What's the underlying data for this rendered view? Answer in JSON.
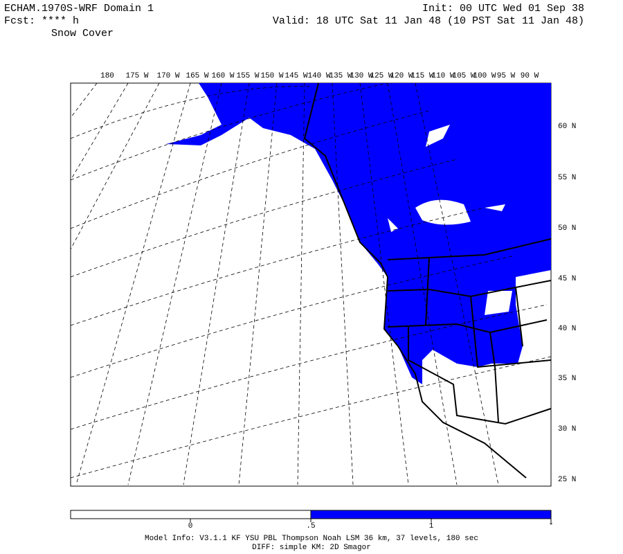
{
  "header": {
    "left": [
      "ECHAM.1970S-WRF Domain 1",
      "Fcst: **** h",
      "Snow Cover"
    ],
    "right": [
      "Init: 00 UTC Wed 01 Sep 38",
      "Valid: 18 UTC Sat 11 Jan 48 (10 PST Sat 11 Jan 48)"
    ]
  },
  "map": {
    "lon_labels": [
      "180",
      "175 W",
      "170 W",
      "165 W",
      "160 W",
      "155 W",
      "150 W",
      "145 W",
      "140 W",
      "135 W",
      "130 W",
      "125 W",
      "120 W",
      "115 W",
      "110 W",
      "105 W",
      "100 W",
      "95 W",
      "90 W"
    ],
    "lat_labels": [
      "60 N",
      "55 N",
      "50 N",
      "45 N",
      "40 N",
      "35 N",
      "30 N",
      "25 N"
    ],
    "snow_color": "#0000ff"
  },
  "colorbar": {
    "labels": [
      "0",
      ".5",
      "1",
      "*"
    ],
    "colors": [
      "#ffffff",
      "#0000ff"
    ]
  },
  "footer": [
    "Model Info: V3.1.1    KF     YSU PBL  Thompson    Noah LSM  36 km,    37 levels,  180 sec",
    "DIFF: simple KM: 2D Smagor"
  ]
}
